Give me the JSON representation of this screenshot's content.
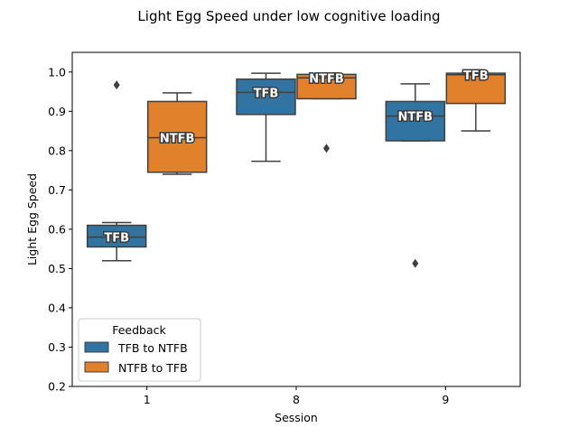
{
  "chart_data": {
    "type": "box",
    "title": "Light Egg Speed under low cognitive loading",
    "xlabel": "Session",
    "ylabel": "Light Egg Speed",
    "categories": [
      "1",
      "8",
      "9"
    ],
    "ylim": [
      0.2,
      1.05
    ],
    "yticks": [
      0.2,
      0.3,
      0.4,
      0.5,
      0.6,
      0.7,
      0.8,
      0.9,
      1.0
    ],
    "ytick_labels": [
      "0.2",
      "0.3",
      "0.4",
      "0.5",
      "0.6",
      "0.7",
      "0.8",
      "0.9",
      "1.0"
    ],
    "grid": false,
    "legend": {
      "title": "Feedback",
      "placement": "lower-left",
      "entries": [
        "TFB to NTFB",
        "NTFB to TFB"
      ]
    },
    "series": [
      {
        "name": "TFB to NTFB",
        "color": "#3274a1",
        "boxes": [
          {
            "category": "1",
            "whisker_low": 0.52,
            "q1": 0.555,
            "median": 0.58,
            "q3": 0.61,
            "whisker_high": 0.617,
            "outliers": [
              0.967
            ],
            "label": "TFB"
          },
          {
            "category": "8",
            "whisker_low": 0.773,
            "q1": 0.892,
            "median": 0.948,
            "q3": 0.982,
            "whisker_high": 0.997,
            "outliers": [],
            "label": "TFB"
          },
          {
            "category": "9",
            "whisker_low": 0.825,
            "q1": 0.825,
            "median": 0.888,
            "q3": 0.925,
            "whisker_high": 0.97,
            "outliers": [
              0.513
            ],
            "label": "NTFB"
          }
        ]
      },
      {
        "name": "NTFB to TFB",
        "color": "#e1812c",
        "boxes": [
          {
            "category": "1",
            "whisker_low": 0.74,
            "q1": 0.745,
            "median": 0.833,
            "q3": 0.925,
            "whisker_high": 0.947,
            "outliers": [],
            "label": "NTFB"
          },
          {
            "category": "8",
            "whisker_low": 0.932,
            "q1": 0.932,
            "median": 0.985,
            "q3": 0.994,
            "whisker_high": 0.994,
            "outliers": [
              0.806
            ],
            "label": "NTFB"
          },
          {
            "category": "9",
            "whisker_low": 0.85,
            "q1": 0.92,
            "median": 0.993,
            "q3": 0.997,
            "whisker_high": 0.997,
            "outliers": [],
            "label": "TFB"
          }
        ]
      }
    ]
  }
}
